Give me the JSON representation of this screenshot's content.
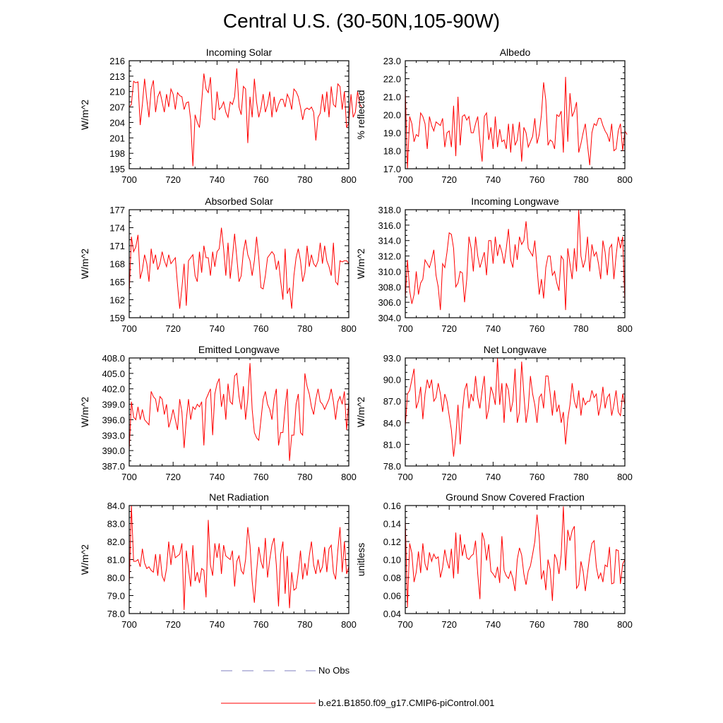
{
  "title": "Central U.S. (30-50N,105-90W)",
  "series_color": "#ff0000",
  "obs_color": "#8080c0",
  "legend": {
    "obs_label": "No Obs",
    "model_label": "b.e21.B1850.f09_g17.CMIP6-piControl.001"
  },
  "chart_data": [
    {
      "type": "line",
      "title": "Incoming Solar",
      "ylabel": "W/m^2",
      "xlim": [
        700,
        800
      ],
      "ylim": [
        195,
        216
      ],
      "xticks": [
        700,
        720,
        740,
        760,
        780,
        800
      ],
      "yticks": [
        195,
        198,
        201,
        204,
        207,
        210,
        213,
        216
      ],
      "ytick_decimals": 0,
      "x_start": 700,
      "values": [
        207.0,
        207.5,
        212.0,
        211.7,
        211.9,
        203.5,
        207.5,
        212.5,
        208.5,
        205.0,
        210.5,
        212.2,
        206.0,
        209.0,
        210.0,
        208.0,
        206.0,
        209.5,
        207.0,
        210.5,
        209.5,
        206.5,
        209.8,
        209.2,
        209.0,
        206.5,
        207.8,
        208.0,
        204.5,
        195.5,
        205.5,
        204.0,
        203.0,
        208.0,
        213.5,
        210.5,
        209.8,
        212.8,
        204.8,
        204.5,
        210.0,
        206.5,
        207.0,
        208.0,
        206.0,
        205.0,
        208.0,
        207.5,
        209.0,
        214.5,
        207.0,
        205.5,
        211.0,
        210.5,
        200.0,
        209.0,
        205.0,
        212.5,
        208.0,
        205.0,
        206.8,
        209.5,
        206.0,
        207.5,
        210.0,
        205.0,
        209.0,
        206.0,
        207.5,
        208.5,
        208.5,
        207.0,
        209.5,
        208.5,
        206.5,
        210.5,
        210.0,
        209.0,
        207.0,
        204.5,
        206.5,
        206.8,
        206.5,
        207.0,
        206.0,
        200.5,
        205.0,
        205.8,
        209.5,
        206.0,
        210.0,
        205.0,
        211.0,
        207.5,
        207.0,
        211.5,
        211.0,
        206.5,
        210.0,
        203.0,
        204.0,
        209.5,
        205.0,
        206.0,
        210.0,
        207.5,
        207.0
      ]
    },
    {
      "type": "line",
      "title": "Albedo",
      "ylabel": "% reflected",
      "xlim": [
        700,
        800
      ],
      "ylim": [
        17.0,
        23.0
      ],
      "xticks": [
        700,
        720,
        740,
        760,
        780,
        800
      ],
      "yticks": [
        17.0,
        18.0,
        19.0,
        20.0,
        21.0,
        22.0,
        23.0
      ],
      "ytick_decimals": 1,
      "x_start": 700,
      "values": [
        21.4,
        17.0,
        19.9,
        19.5,
        18.5,
        18.9,
        18.8,
        20.1,
        19.9,
        19.5,
        18.1,
        19.9,
        19.4,
        19.1,
        19.6,
        19.5,
        19.4,
        19.8,
        18.2,
        19.0,
        19.1,
        18.2,
        20.5,
        17.7,
        21.0,
        18.3,
        19.9,
        20.0,
        19.7,
        19.9,
        19.0,
        19.0,
        19.5,
        19.9,
        18.5,
        17.4,
        19.9,
        20.1,
        18.6,
        19.3,
        18.1,
        19.9,
        18.2,
        19.2,
        18.5,
        18.6,
        18.1,
        19.5,
        17.9,
        19.5,
        18.3,
        18.6,
        19.6,
        17.4,
        19.3,
        19.0,
        18.2,
        18.5,
        18.8,
        19.8,
        18.4,
        18.9,
        20.0,
        21.8,
        20.8,
        18.3,
        18.6,
        18.5,
        18.1,
        20.0,
        19.9,
        20.2,
        17.9,
        22.1,
        18.5,
        21.2,
        19.9,
        20.2,
        20.7,
        17.9,
        18.4,
        19.0,
        19.5,
        18.3,
        17.2,
        19.0,
        19.5,
        19.4,
        19.8,
        19.8,
        19.4,
        19.1,
        18.9,
        18.5,
        19.5,
        18.0,
        18.1,
        19.1,
        19.5,
        18.0,
        19.1,
        18.9
      ]
    },
    {
      "type": "line",
      "title": "Absorbed Solar",
      "ylabel": "W/m^2",
      "xlim": [
        700,
        800
      ],
      "ylim": [
        159,
        177
      ],
      "xticks": [
        700,
        720,
        740,
        760,
        780,
        800
      ],
      "yticks": [
        159,
        162,
        165,
        168,
        171,
        174,
        177
      ],
      "ytick_decimals": 0,
      "x_start": 700,
      "values": [
        163.0,
        172.5,
        170.0,
        170.8,
        172.8,
        165.5,
        167.0,
        169.5,
        168.0,
        165.0,
        170.5,
        168.0,
        169.5,
        167.0,
        168.0,
        170.0,
        168.5,
        167.5,
        169.5,
        168.0,
        168.5,
        169.0,
        164.5,
        160.5,
        164.0,
        168.0,
        161.0,
        168.5,
        169.0,
        169.5,
        166.0,
        165.0,
        170.0,
        166.5,
        171.0,
        169.0,
        169.0,
        166.0,
        170.0,
        167.5,
        170.0,
        170.5,
        174.0,
        170.5,
        166.0,
        171.5,
        165.5,
        169.0,
        173.0,
        169.0,
        165.0,
        166.0,
        170.0,
        172.0,
        169.5,
        168.5,
        166.0,
        168.5,
        172.5,
        169.0,
        164.0,
        163.8,
        166.0,
        169.0,
        169.5,
        170.0,
        169.5,
        167.0,
        168.5,
        165.0,
        162.0,
        170.5,
        163.0,
        164.0,
        160.5,
        166.0,
        169.0,
        170.5,
        168.5,
        165.0,
        166.5,
        171.0,
        167.5,
        169.5,
        168.0,
        167.5,
        168.5,
        171.5,
        168.0,
        171.0,
        168.5,
        167.5,
        166.0,
        171.5,
        165.0,
        164.5,
        168.5,
        168.3,
        168.5,
        168.5,
        168.0
      ]
    },
    {
      "type": "line",
      "title": "Incoming Longwave",
      "ylabel": "W/m^2",
      "xlim": [
        700,
        800
      ],
      "ylim": [
        304.0,
        318.0
      ],
      "xticks": [
        700,
        720,
        740,
        760,
        780,
        800
      ],
      "yticks": [
        304.0,
        306.0,
        308.0,
        310.0,
        312.0,
        314.0,
        316.0,
        318.0
      ],
      "ytick_decimals": 1,
      "x_start": 700,
      "values": [
        306.5,
        311.5,
        307.5,
        305.8,
        307.0,
        310.0,
        307.0,
        308.5,
        309.0,
        311.5,
        311.0,
        310.5,
        311.5,
        312.8,
        309.5,
        308.0,
        305.0,
        311.0,
        310.5,
        312.5,
        315.0,
        314.8,
        313.0,
        308.0,
        308.5,
        310.0,
        309.8,
        306.0,
        309.0,
        314.5,
        313.0,
        310.0,
        314.5,
        312.0,
        310.5,
        311.5,
        312.5,
        309.5,
        314.0,
        314.0,
        311.0,
        314.5,
        312.0,
        313.5,
        312.5,
        311.0,
        313.0,
        315.5,
        311.5,
        310.5,
        313.5,
        311.5,
        314.5,
        313.5,
        314.0,
        316.5,
        313.0,
        312.5,
        312.0,
        314.0,
        310.5,
        307.0,
        309.0,
        306.5,
        310.5,
        312.0,
        312.0,
        309.5,
        310.0,
        308.5,
        307.5,
        312.0,
        311.5,
        305.0,
        313.0,
        311.0,
        309.0,
        313.0,
        310.0,
        318.0,
        312.0,
        310.5,
        311.5,
        314.5,
        310.0,
        313.5,
        312.0,
        312.5,
        311.0,
        309.0,
        314.0,
        312.5,
        309.5,
        313.0,
        313.5,
        309.0,
        312.0,
        314.5,
        313.0,
        314.5,
        306.0
      ]
    },
    {
      "type": "line",
      "title": "Emitted Longwave",
      "ylabel": "W/m^2",
      "xlim": [
        700,
        800
      ],
      "ylim": [
        387.0,
        408.0
      ],
      "xticks": [
        700,
        720,
        740,
        760,
        780,
        800
      ],
      "yticks": [
        387.0,
        390.0,
        393.0,
        396.0,
        399.0,
        402.0,
        405.0,
        408.0
      ],
      "ytick_decimals": 1,
      "x_start": 700,
      "values": [
        390.0,
        399.5,
        396.5,
        396.0,
        398.5,
        396.0,
        398.0,
        396.0,
        395.5,
        395.0,
        401.5,
        400.5,
        400.0,
        397.5,
        400.5,
        400.0,
        397.0,
        399.0,
        394.5,
        396.0,
        398.0,
        396.0,
        394.0,
        400.0,
        397.5,
        390.5,
        396.0,
        400.0,
        396.0,
        398.5,
        398.0,
        399.0,
        398.5,
        399.5,
        391.0,
        400.0,
        401.0,
        402.0,
        393.0,
        401.0,
        403.0,
        404.0,
        398.5,
        401.0,
        396.0,
        403.0,
        399.5,
        399.0,
        404.5,
        405.0,
        400.5,
        398.0,
        402.5,
        396.0,
        400.0,
        407.0,
        398.0,
        393.5,
        392.5,
        392.0,
        396.0,
        400.0,
        401.5,
        399.0,
        398.0,
        396.0,
        400.0,
        402.0,
        391.0,
        393.5,
        393.5,
        398.5,
        402.0,
        388.0,
        393.0,
        393.0,
        399.0,
        401.0,
        393.5,
        393.0,
        405.0,
        402.5,
        401.0,
        398.5,
        397.0,
        400.0,
        402.0,
        399.5,
        399.0,
        398.0,
        399.0,
        400.0,
        402.0,
        399.5,
        396.0,
        399.5,
        400.5,
        399.0,
        401.5,
        394.0,
        399.5
      ]
    },
    {
      "type": "line",
      "title": "Net Longwave",
      "ylabel": "W/m^2",
      "xlim": [
        700,
        800
      ],
      "ylim": [
        78.0,
        93.0
      ],
      "xticks": [
        700,
        720,
        740,
        760,
        780,
        800
      ],
      "yticks": [
        78.0,
        81.0,
        84.0,
        87.0,
        90.0,
        93.0
      ],
      "ytick_decimals": 1,
      "x_start": 700,
      "values": [
        83.5,
        88.0,
        88.5,
        90.0,
        91.5,
        86.0,
        87.0,
        89.0,
        84.5,
        88.0,
        90.0,
        88.8,
        90.0,
        87.0,
        87.5,
        89.5,
        88.0,
        85.5,
        88.0,
        87.0,
        85.0,
        83.0,
        79.3,
        82.0,
        86.5,
        81.0,
        85.5,
        88.5,
        89.5,
        86.0,
        88.0,
        87.0,
        90.5,
        87.5,
        86.0,
        88.5,
        90.5,
        84.5,
        86.0,
        89.0,
        88.0,
        86.5,
        93.0,
        86.5,
        89.5,
        84.0,
        89.5,
        88.5,
        85.5,
        87.0,
        91.5,
        84.0,
        85.5,
        92.5,
        88.0,
        84.0,
        86.0,
        90.5,
        88.0,
        86.5,
        84.0,
        87.5,
        88.0,
        86.0,
        90.5,
        90.5,
        88.0,
        85.0,
        88.5,
        85.5,
        86.5,
        84.0,
        85.5,
        81.0,
        84.5,
        86.5,
        89.5,
        87.0,
        86.0,
        88.5,
        85.0,
        87.5,
        86.5,
        87.0,
        87.0,
        88.5,
        87.5,
        88.0,
        85.0,
        86.5,
        89.0,
        86.0,
        87.5,
        88.0,
        85.0,
        86.5,
        88.5,
        85.5,
        85.0,
        88.0,
        86.5
      ]
    },
    {
      "type": "line",
      "title": "Net Radiation",
      "ylabel": "W/m^2",
      "xlim": [
        700,
        800
      ],
      "ylim": [
        78.0,
        84.0
      ],
      "xticks": [
        700,
        720,
        740,
        760,
        780,
        800
      ],
      "yticks": [
        78.0,
        79.0,
        80.0,
        81.0,
        82.0,
        83.0,
        84.0
      ],
      "ytick_decimals": 1,
      "x_start": 700,
      "values": [
        79.5,
        84.0,
        80.9,
        80.9,
        81.0,
        80.6,
        81.6,
        80.8,
        80.5,
        80.6,
        80.4,
        80.3,
        81.3,
        80.1,
        81.3,
        80.1,
        79.8,
        80.5,
        82.0,
        80.7,
        81.8,
        81.1,
        81.2,
        81.3,
        81.9,
        78.2,
        81.5,
        80.5,
        79.5,
        81.8,
        79.8,
        80.3,
        79.7,
        80.5,
        80.4,
        78.9,
        83.2,
        80.7,
        80.1,
        81.9,
        81.1,
        81.9,
        80.2,
        81.8,
        81.2,
        81.1,
        81.0,
        81.5,
        79.5,
        80.9,
        81.2,
        80.4,
        80.2,
        81.0,
        82.8,
        81.8,
        79.8,
        78.6,
        80.3,
        81.7,
        80.9,
        80.5,
        82.2,
        80.0,
        81.0,
        81.8,
        82.2,
        80.7,
        78.4,
        81.3,
        82.0,
        79.1,
        81.2,
        78.3,
        80.3,
        79.3,
        79.4,
        80.3,
        81.5,
        79.9,
        80.8,
        80.1,
        81.2,
        82.0,
        80.7,
        80.2,
        81.0,
        80.3,
        80.6,
        81.7,
        80.3,
        81.6,
        81.8,
        80.3,
        79.9,
        81.5,
        82.8,
        80.3,
        82.0,
        80.2,
        80.6
      ]
    },
    {
      "type": "line",
      "title": "Ground Snow Covered Fraction",
      "ylabel": "unitless",
      "xlim": [
        700,
        800
      ],
      "ylim": [
        0.04,
        0.16
      ],
      "xticks": [
        700,
        720,
        740,
        760,
        780,
        800
      ],
      "yticks": [
        0.04,
        0.06,
        0.08,
        0.1,
        0.12,
        0.14,
        0.16
      ],
      "ytick_decimals": 2,
      "x_start": 700,
      "values": [
        0.145,
        0.047,
        0.118,
        0.107,
        0.075,
        0.086,
        0.109,
        0.085,
        0.118,
        0.095,
        0.088,
        0.108,
        0.098,
        0.106,
        0.101,
        0.103,
        0.08,
        0.091,
        0.111,
        0.098,
        0.09,
        0.112,
        0.079,
        0.13,
        0.084,
        0.128,
        0.104,
        0.117,
        0.102,
        0.1,
        0.104,
        0.106,
        0.121,
        0.084,
        0.056,
        0.13,
        0.121,
        0.099,
        0.117,
        0.087,
        0.084,
        0.08,
        0.092,
        0.074,
        0.126,
        0.088,
        0.082,
        0.079,
        0.087,
        0.079,
        0.065,
        0.1,
        0.113,
        0.105,
        0.084,
        0.072,
        0.087,
        0.093,
        0.106,
        0.12,
        0.15,
        0.125,
        0.078,
        0.088,
        0.066,
        0.1,
        0.089,
        0.054,
        0.106,
        0.1,
        0.084,
        0.105,
        0.159,
        0.088,
        0.133,
        0.121,
        0.132,
        0.137,
        0.068,
        0.072,
        0.098,
        0.087,
        0.065,
        0.085,
        0.104,
        0.118,
        0.121,
        0.092,
        0.079,
        0.085,
        0.075,
        0.094,
        0.092,
        0.114,
        0.073,
        0.074,
        0.111,
        0.11,
        0.073,
        0.095,
        0.1
      ]
    }
  ]
}
